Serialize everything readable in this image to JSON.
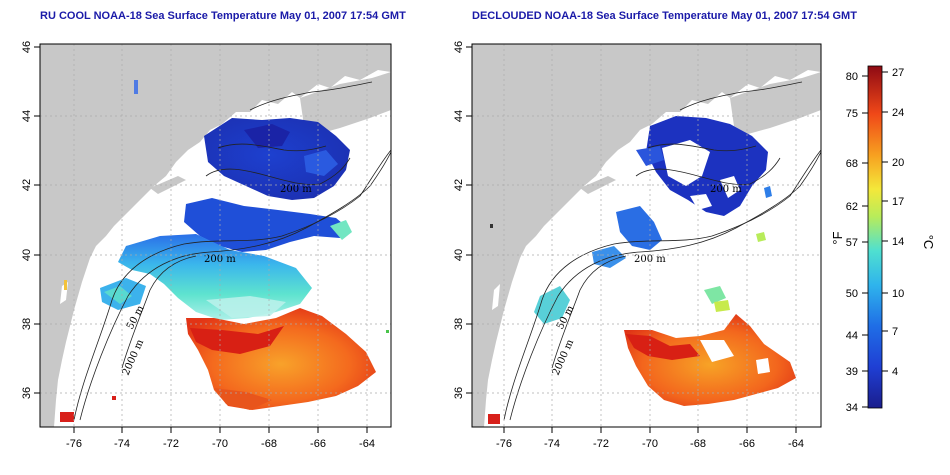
{
  "panels": [
    {
      "title": "RU COOL NOAA-18 Sea Surface Temperature May 01, 2007 17:54 GMT",
      "contour_labels": [
        "50 m",
        "200 m",
        "2000 m",
        "200 m"
      ]
    },
    {
      "title": "DECLOUDED NOAA-18 Sea Surface Temperature May 01, 2007 17:54 GMT",
      "contour_labels": [
        "50 m",
        "200 m",
        "2000 m",
        "200 m"
      ]
    }
  ],
  "axes": {
    "x_ticks": [
      "-76",
      "-74",
      "-72",
      "-70",
      "-68",
      "-66",
      "-64"
    ],
    "y_ticks": [
      "36",
      "38",
      "40",
      "42",
      "44",
      "46"
    ],
    "lon_range": [
      -77.2,
      -62.8
    ],
    "lat_range": [
      35,
      46
    ]
  },
  "colorbar": {
    "fahrenheit_ticks": [
      "80",
      "75",
      "68",
      "62",
      "57",
      "50",
      "44",
      "39",
      "34"
    ],
    "celsius_ticks": [
      "27",
      "24",
      "20",
      "17",
      "14",
      "10",
      "7",
      "4"
    ],
    "unit_f": "°F",
    "unit_c": "°C",
    "colors": [
      "#1a1d8c",
      "#1f3fd4",
      "#1f6ee6",
      "#2fb4ec",
      "#4fe0d0",
      "#b8ec5a",
      "#f4e83a",
      "#f7a020",
      "#f04818",
      "#8e0a14"
    ]
  },
  "colors": {
    "land": "#c8c8c8",
    "title": "#1a1aa8"
  }
}
